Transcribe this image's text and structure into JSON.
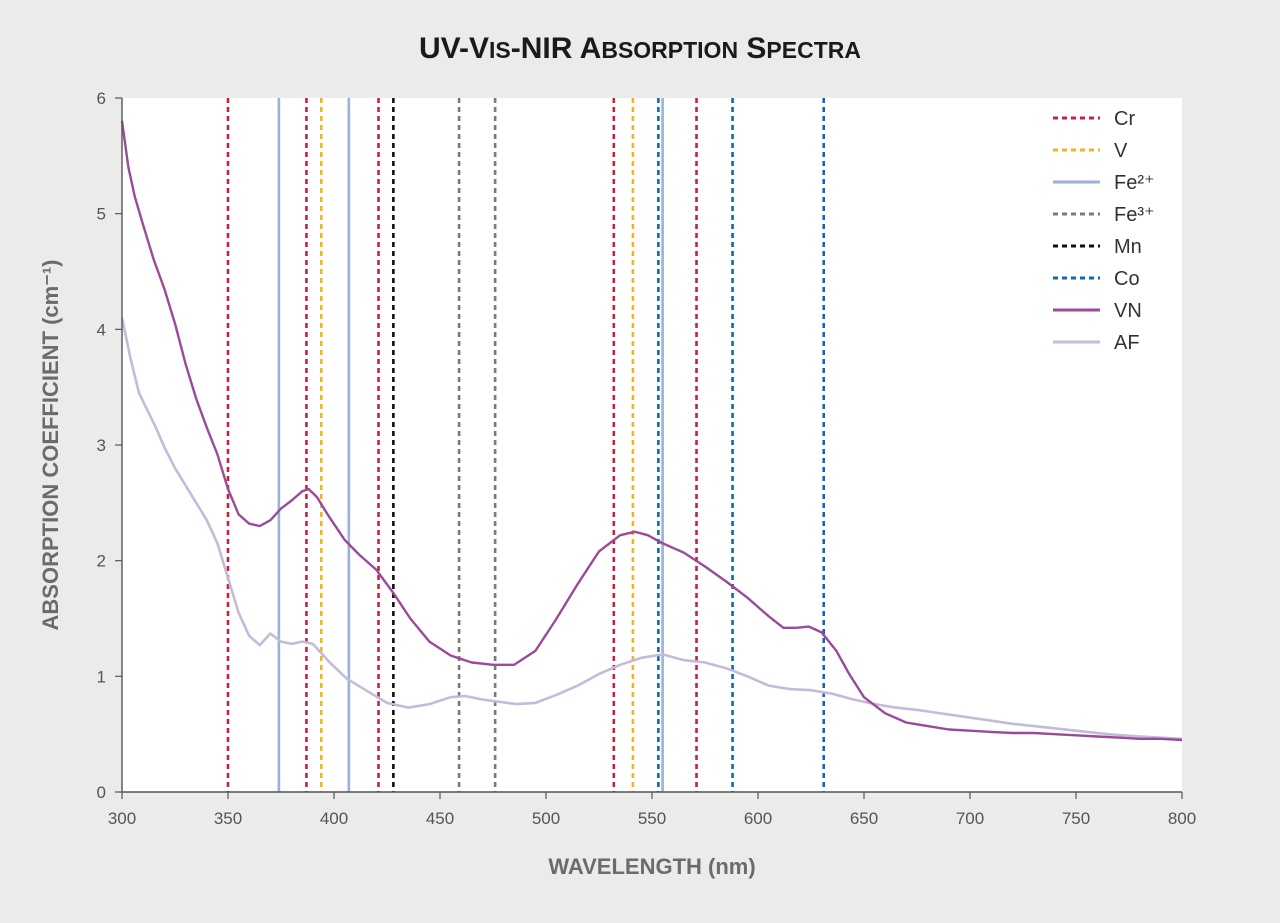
{
  "chart_data": {
    "type": "line",
    "title": "UV-Vis-NIR Absorption Spectra",
    "xlabel": "WAVELENGTH (nm)",
    "ylabel": "ABSORPTION COEFFICIENT (cm⁻¹)",
    "xlim": [
      300,
      800
    ],
    "ylim": [
      0,
      6
    ],
    "xticks": [
      300,
      350,
      400,
      450,
      500,
      550,
      600,
      650,
      700,
      750,
      800
    ],
    "yticks": [
      0,
      1,
      2,
      3,
      4,
      5,
      6
    ],
    "legend_position": "top-right",
    "colors": {
      "Cr": "#cc1f3c",
      "V": "#f2b51d",
      "Fe2": "#9ab2d9",
      "Fe3": "#7a7a7a",
      "Mn": "#111111",
      "Co": "#1366b3",
      "VN": "#9b4a9a",
      "AF": "#c4bbd8"
    },
    "legend": [
      {
        "key": "Cr",
        "label": "Cr",
        "style": "dashed"
      },
      {
        "key": "V",
        "label": "V",
        "style": "dashed"
      },
      {
        "key": "Fe2",
        "label": "Fe²⁺",
        "style": "solid"
      },
      {
        "key": "Fe3",
        "label": "Fe³⁺",
        "style": "dashed"
      },
      {
        "key": "Mn",
        "label": "Mn",
        "style": "dashed"
      },
      {
        "key": "Co",
        "label": "Co",
        "style": "dashed"
      },
      {
        "key": "VN",
        "label": "VN",
        "style": "solid"
      },
      {
        "key": "AF",
        "label": "AF",
        "style": "solid"
      }
    ],
    "reference_lines": [
      {
        "key": "Cr",
        "x": [
          350,
          387,
          421,
          532,
          571
        ]
      },
      {
        "key": "V",
        "x": [
          394,
          541
        ]
      },
      {
        "key": "Fe2",
        "x": [
          374,
          407,
          555
        ]
      },
      {
        "key": "Fe3",
        "x": [
          459,
          476
        ]
      },
      {
        "key": "Mn",
        "x": [
          428
        ]
      },
      {
        "key": "Co",
        "x": [
          553,
          588,
          631
        ]
      }
    ],
    "series": [
      {
        "key": "VN",
        "name": "VN",
        "x": [
          300,
          303,
          306,
          310,
          315,
          320,
          325,
          330,
          335,
          340,
          345,
          350,
          355,
          360,
          365,
          370,
          375,
          380,
          385,
          388,
          392,
          397,
          405,
          412,
          420,
          428,
          436,
          445,
          455,
          465,
          475,
          485,
          495,
          505,
          515,
          525,
          535,
          542,
          548,
          555,
          565,
          575,
          585,
          595,
          605,
          612,
          618,
          624,
          630,
          637,
          643,
          650,
          660,
          670,
          680,
          690,
          700,
          710,
          720,
          730,
          740,
          750,
          760,
          770,
          780,
          790,
          800
        ],
        "y": [
          5.8,
          5.4,
          5.15,
          4.9,
          4.6,
          4.35,
          4.05,
          3.7,
          3.4,
          3.15,
          2.92,
          2.62,
          2.4,
          2.32,
          2.3,
          2.35,
          2.45,
          2.52,
          2.6,
          2.62,
          2.55,
          2.4,
          2.18,
          2.05,
          1.92,
          1.72,
          1.5,
          1.3,
          1.18,
          1.12,
          1.1,
          1.1,
          1.22,
          1.5,
          1.8,
          2.08,
          2.22,
          2.25,
          2.22,
          2.15,
          2.07,
          1.95,
          1.82,
          1.68,
          1.52,
          1.42,
          1.42,
          1.43,
          1.38,
          1.22,
          1.02,
          0.82,
          0.68,
          0.6,
          0.57,
          0.54,
          0.53,
          0.52,
          0.51,
          0.51,
          0.5,
          0.49,
          0.48,
          0.47,
          0.46,
          0.46,
          0.45
        ]
      },
      {
        "key": "AF",
        "name": "AF",
        "x": [
          300,
          304,
          308,
          312,
          316,
          320,
          325,
          330,
          335,
          340,
          345,
          350,
          355,
          360,
          365,
          370,
          375,
          380,
          385,
          390,
          398,
          406,
          415,
          425,
          435,
          445,
          455,
          462,
          470,
          478,
          486,
          495,
          505,
          515,
          525,
          535,
          545,
          555,
          565,
          575,
          585,
          595,
          605,
          615,
          625,
          635,
          645,
          655,
          665,
          675,
          690,
          705,
          720,
          735,
          750,
          765,
          780,
          800
        ],
        "y": [
          4.1,
          3.75,
          3.45,
          3.3,
          3.15,
          2.98,
          2.8,
          2.65,
          2.5,
          2.35,
          2.15,
          1.85,
          1.55,
          1.35,
          1.27,
          1.37,
          1.3,
          1.28,
          1.3,
          1.28,
          1.12,
          0.98,
          0.88,
          0.77,
          0.73,
          0.76,
          0.82,
          0.83,
          0.8,
          0.78,
          0.76,
          0.77,
          0.84,
          0.92,
          1.02,
          1.1,
          1.16,
          1.19,
          1.14,
          1.12,
          1.07,
          1.0,
          0.92,
          0.89,
          0.88,
          0.85,
          0.8,
          0.76,
          0.73,
          0.71,
          0.67,
          0.63,
          0.59,
          0.56,
          0.53,
          0.5,
          0.48,
          0.46
        ]
      }
    ]
  }
}
